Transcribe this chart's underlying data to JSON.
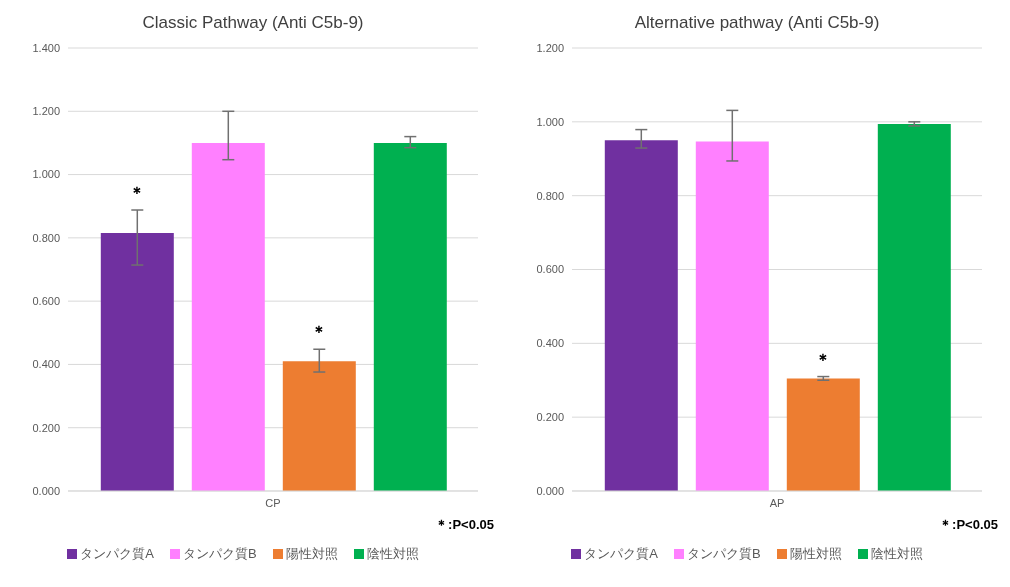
{
  "chart_data": [
    {
      "type": "bar",
      "title": "Classic Pathway (Anti C5b-9)",
      "categories": [
        "CP"
      ],
      "series": [
        {
          "name": "タンパク質A",
          "color": "#7030a0",
          "values": [
            0.815
          ],
          "errors": [
            [
              0.714,
              0.888
            ]
          ],
          "value_labels": [
            "＊"
          ]
        },
        {
          "name": "タンパク質B",
          "color": "#ff80ff",
          "values": [
            1.1
          ],
          "errors": [
            [
              1.047,
              1.2
            ]
          ],
          "value_labels": [
            null
          ]
        },
        {
          "name": "陽性対照",
          "color": "#ed7d31",
          "values": [
            0.41
          ],
          "errors": [
            [
              0.376,
              0.448
            ]
          ],
          "value_labels": [
            "＊"
          ]
        },
        {
          "name": "陰性対照",
          "color": "#00b050",
          "values": [
            1.1
          ],
          "errors": [
            [
              1.085,
              1.12
            ]
          ],
          "value_labels": [
            null
          ]
        }
      ],
      "ylim": [
        0,
        1.4
      ],
      "yticks": [
        {
          "value": 0,
          "label": "0.000"
        },
        {
          "value": 0.2,
          "label": "0.200"
        },
        {
          "value": 0.4,
          "label": "0.400"
        },
        {
          "value": 0.6,
          "label": "0.600"
        },
        {
          "value": 0.8,
          "label": "0.800"
        },
        {
          "value": 1.0,
          "label": "1.000"
        },
        {
          "value": 1.2,
          "label": "1.200"
        },
        {
          "value": 1.4,
          "label": "1.400"
        }
      ],
      "grid": "y",
      "legend": "bottom",
      "annotations": [
        "＊:P<0.05"
      ]
    },
    {
      "type": "bar",
      "title": "Alternative pathway (Anti C5b-9)",
      "categories": [
        "AP"
      ],
      "series": [
        {
          "name": "タンパク質A",
          "color": "#7030a0",
          "values": [
            0.95
          ],
          "errors": [
            [
              0.929,
              0.979
            ]
          ],
          "value_labels": [
            null
          ]
        },
        {
          "name": "タンパク質B",
          "color": "#ff80ff",
          "values": [
            0.947
          ],
          "errors": [
            [
              0.894,
              1.031
            ]
          ],
          "value_labels": [
            null
          ]
        },
        {
          "name": "陽性対照",
          "color": "#ed7d31",
          "values": [
            0.305
          ],
          "errors": [
            [
              0.3,
              0.31
            ]
          ],
          "value_labels": [
            "＊"
          ]
        },
        {
          "name": "陰性対照",
          "color": "#00b050",
          "values": [
            0.994
          ],
          "errors": [
            [
              0.989,
              1.0
            ]
          ],
          "value_labels": [
            null
          ]
        }
      ],
      "ylim": [
        0,
        1.2
      ],
      "yticks": [
        {
          "value": 0,
          "label": "0.000"
        },
        {
          "value": 0.2,
          "label": "0.200"
        },
        {
          "value": 0.4,
          "label": "0.400"
        },
        {
          "value": 0.6,
          "label": "0.600"
        },
        {
          "value": 0.8,
          "label": "0.800"
        },
        {
          "value": 1.0,
          "label": "1.000"
        },
        {
          "value": 1.2,
          "label": "1.200"
        }
      ],
      "grid": "y",
      "legend": "bottom",
      "annotations": [
        "＊:P<0.05"
      ]
    }
  ]
}
